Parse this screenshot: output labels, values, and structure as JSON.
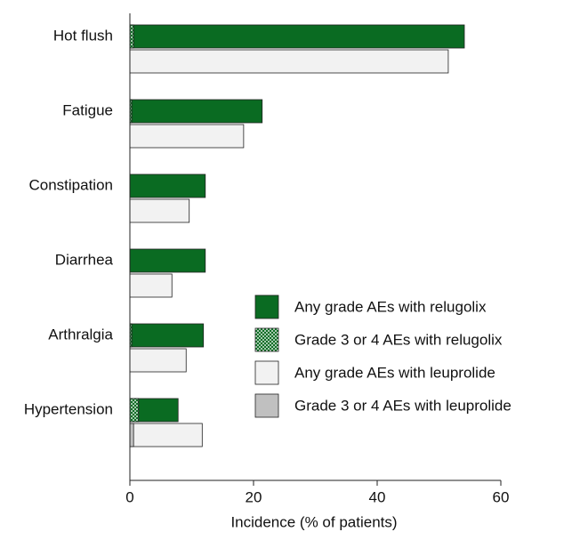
{
  "chart_data": {
    "type": "bar",
    "orientation": "horizontal",
    "x_label": "Incidence (% of patients)",
    "categories": [
      "Hot flush",
      "Fatigue",
      "Constipation",
      "Diarrhea",
      "Arthralgia",
      "Hypertension"
    ],
    "series": [
      {
        "name": "Any grade AEs with relugolix",
        "color": "#0a6b22",
        "values": [
          54.1,
          21.4,
          12.2,
          12.2,
          11.9,
          7.8
        ]
      },
      {
        "name": "Grade 3 or 4 AEs with relugolix",
        "color": "#0a6b22",
        "hatch": true,
        "values": [
          0.6,
          0.3,
          0,
          0,
          0.3,
          1.4
        ]
      },
      {
        "name": "Any grade AEs with leuprolide",
        "color": "#f2f2f2",
        "values": [
          51.5,
          18.4,
          9.6,
          6.8,
          9.1,
          11.7
        ]
      },
      {
        "name": "Grade 3 or 4 AEs with leuprolide",
        "color": "#c0c0c0",
        "values": [
          0,
          0,
          0,
          0,
          0,
          0.6
        ]
      }
    ],
    "xlim": [
      0,
      60
    ],
    "xticks": [
      0,
      20,
      40,
      60
    ],
    "legend": "lower right"
  }
}
